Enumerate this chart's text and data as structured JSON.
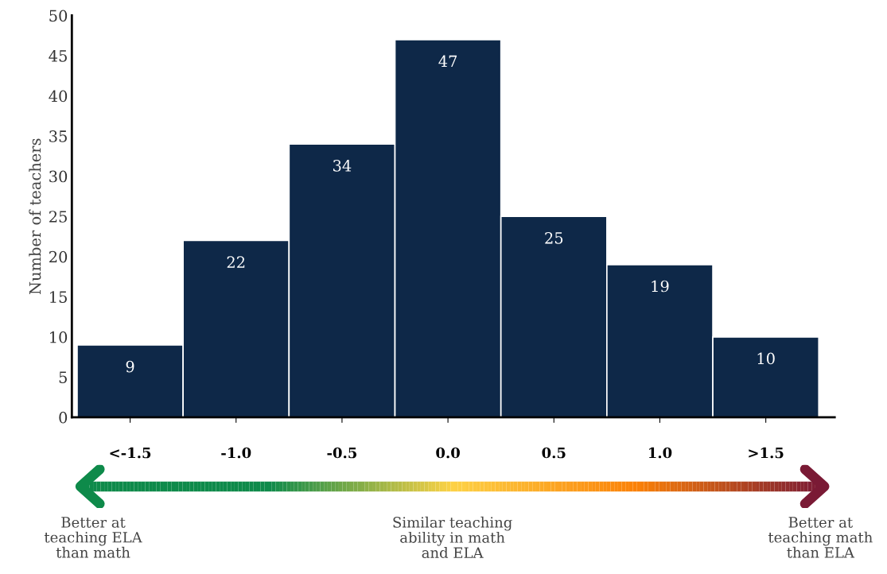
{
  "chart_data": {
    "type": "bar",
    "ylabel": "Number of teachers",
    "categories": [
      "<-1.5",
      "-1.0",
      "-0.5",
      "0.0",
      "0.5",
      "1.0",
      ">1.5"
    ],
    "values": [
      9,
      22,
      34,
      47,
      25,
      19,
      10
    ],
    "color": "#0e2848",
    "ylim": [
      0,
      50
    ],
    "yticks": [
      0,
      5,
      10,
      15,
      20,
      25,
      30,
      35,
      40,
      45,
      50
    ],
    "data_labels": true,
    "grid": false,
    "annotations": [
      "Better at\nteaching ELA\nthan math",
      "Similar teaching\nability in math\nand ELA",
      "Better at\nteaching math\nthan ELA"
    ]
  }
}
